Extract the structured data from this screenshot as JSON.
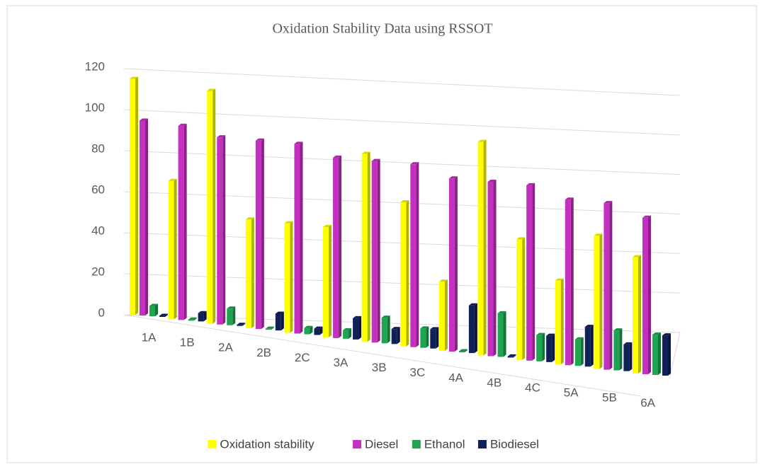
{
  "chart_data": {
    "type": "bar3d",
    "title": "Oxidation Stability Data using RSSOT",
    "categories": [
      "1A",
      "1B",
      "2A",
      "2B",
      "2C",
      "3A",
      "3B",
      "3C",
      "4A",
      "4B",
      "4C",
      "5A",
      "5B",
      "6A"
    ],
    "series": [
      {
        "name": "Oxidation stability",
        "color": "#ffff00",
        "values": [
          115,
          67,
          112,
          52,
          52,
          52,
          88,
          67,
          32,
          98,
          55,
          38,
          60,
          52
        ]
      },
      {
        "name": "Diesel",
        "color": "#c430c0",
        "values": [
          95,
          94,
          90,
          90,
          90,
          85,
          85,
          85,
          80,
          80,
          80,
          75,
          75,
          70
        ]
      },
      {
        "name": "Ethanol",
        "color": "#1fa552",
        "values": [
          5,
          0.5,
          8,
          0.5,
          3,
          4,
          12,
          9,
          0.5,
          20,
          12,
          12,
          18,
          18
        ]
      },
      {
        "name": "Biodiesel",
        "color": "#10215a",
        "values": [
          0.5,
          4,
          0.5,
          8,
          3,
          10,
          7,
          9,
          22,
          0.5,
          12,
          18,
          12,
          18
        ]
      }
    ],
    "ylim": [
      0,
      120
    ],
    "yticks": [
      0,
      20,
      40,
      60,
      80,
      100,
      120
    ],
    "grid": true,
    "legend": "bottom"
  }
}
